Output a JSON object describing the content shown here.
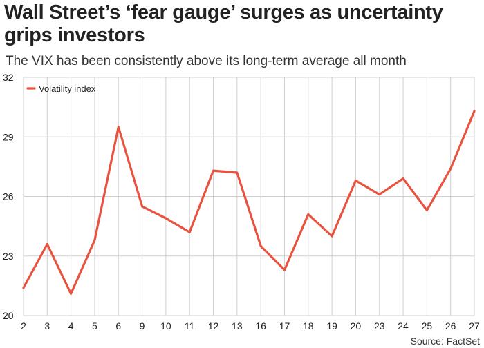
{
  "title": "Wall Street’s ‘fear gauge’ surges as uncertainty grips investors",
  "subtitle": "The VIX has been consistently above its long-term average all month",
  "source": "Source: FactSet",
  "chart_data": {
    "type": "line",
    "categories": [
      "2",
      "3",
      "4",
      "5",
      "6",
      "9",
      "10",
      "11",
      "12",
      "13",
      "16",
      "17",
      "18",
      "19",
      "20",
      "23",
      "24",
      "25",
      "26",
      "27"
    ],
    "series": [
      {
        "name": "Volatility index",
        "color": "#e8523e",
        "values": [
          21.4,
          23.6,
          21.1,
          23.8,
          29.5,
          25.5,
          24.9,
          24.2,
          27.3,
          27.2,
          23.5,
          22.3,
          25.1,
          24.0,
          26.8,
          26.1,
          26.9,
          25.3,
          27.4,
          30.3
        ]
      }
    ],
    "yticks": [
      20,
      23,
      26,
      29,
      32
    ],
    "ylim": [
      20,
      32
    ],
    "grid": true,
    "legend_position": "top-left"
  }
}
